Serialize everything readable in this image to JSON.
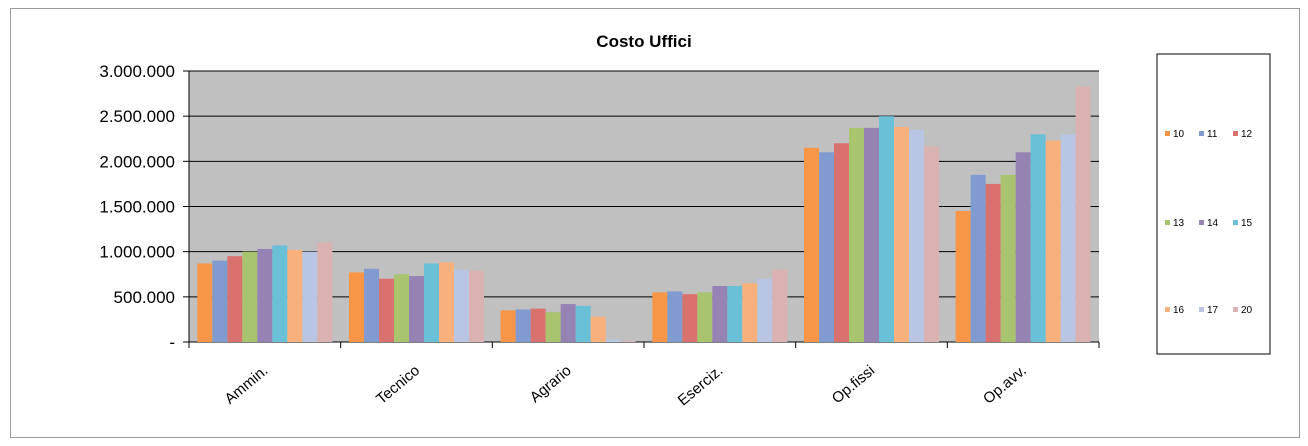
{
  "chart_data": {
    "type": "bar",
    "title": "Costo Uffici",
    "xlabel": "",
    "ylabel": "",
    "categories": [
      "Ammin.",
      "Tecnico",
      "Agrario",
      "Eserciz.",
      "Op.fissi",
      "Op.avv."
    ],
    "ylim": [
      0,
      3000000
    ],
    "yticks": [
      {
        "value": 0,
        "label": "-"
      },
      {
        "value": 500000,
        "label": "500.000"
      },
      {
        "value": 1000000,
        "label": "1.000.000"
      },
      {
        "value": 1500000,
        "label": "1.500.000"
      },
      {
        "value": 2000000,
        "label": "2.000.000"
      },
      {
        "value": 2500000,
        "label": "2.500.000"
      },
      {
        "value": 3000000,
        "label": "3.000.000"
      }
    ],
    "grid": true,
    "plot_background": "#c0c0c0",
    "legend_position": "right",
    "series": [
      {
        "name": "10",
        "color": "#f79646",
        "values": [
          870000,
          770000,
          350000,
          550000,
          2150000,
          1450000
        ]
      },
      {
        "name": "11",
        "color": "#7f9bd0",
        "values": [
          900000,
          810000,
          360000,
          560000,
          2100000,
          1850000
        ]
      },
      {
        "name": "12",
        "color": "#d9726f",
        "values": [
          950000,
          700000,
          370000,
          530000,
          2200000,
          1750000
        ]
      },
      {
        "name": "13",
        "color": "#a9c46e",
        "values": [
          1000000,
          750000,
          330000,
          550000,
          2370000,
          1850000
        ]
      },
      {
        "name": "14",
        "color": "#9583b3",
        "values": [
          1030000,
          730000,
          420000,
          620000,
          2370000,
          2100000
        ]
      },
      {
        "name": "15",
        "color": "#6ac0d6",
        "values": [
          1070000,
          870000,
          400000,
          620000,
          2500000,
          2300000
        ]
      },
      {
        "name": "16",
        "color": "#f8b07c",
        "values": [
          1020000,
          880000,
          280000,
          650000,
          2380000,
          2230000
        ]
      },
      {
        "name": "17",
        "color": "#b8c6e3",
        "values": [
          1000000,
          800000,
          30000,
          700000,
          2350000,
          2300000
        ]
      },
      {
        "name": "20",
        "color": "#dbb2b2",
        "values": [
          1100000,
          790000,
          10000,
          800000,
          2160000,
          2830000
        ]
      }
    ]
  }
}
